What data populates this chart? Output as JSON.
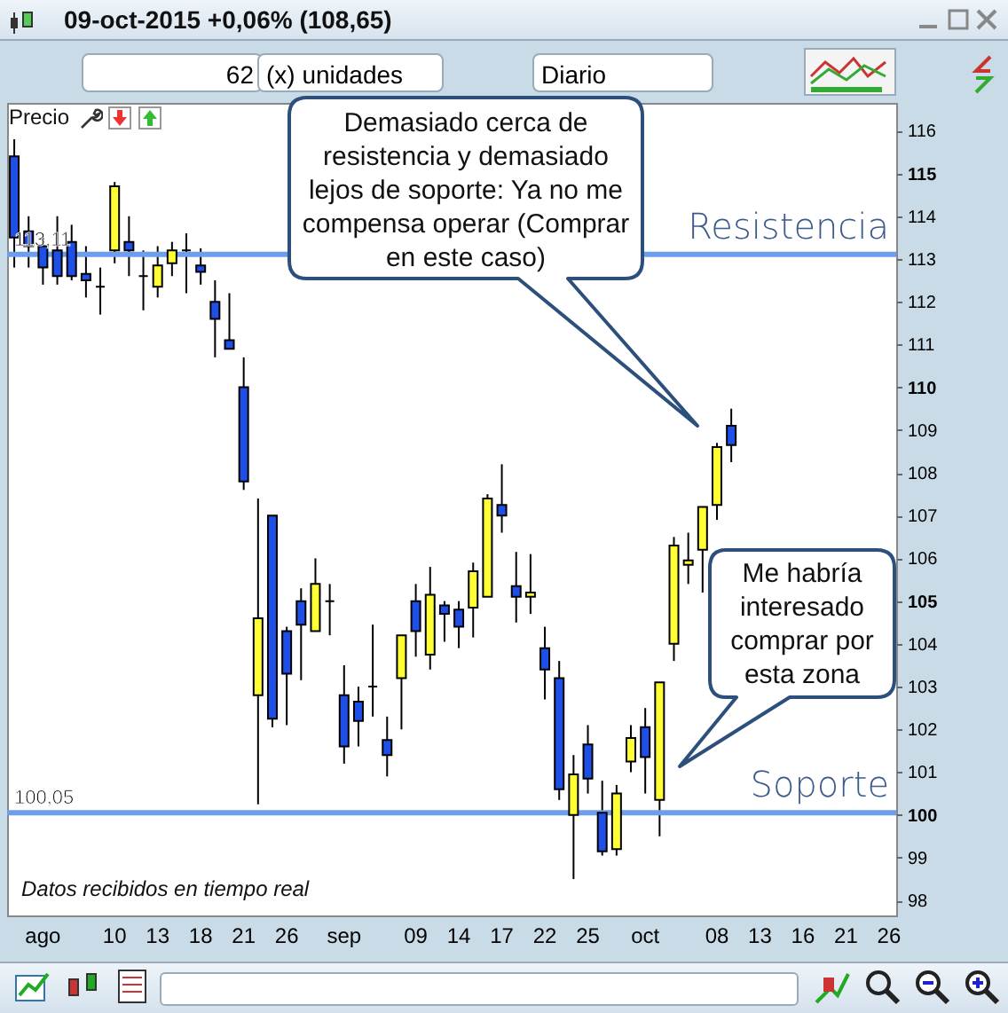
{
  "chart_data": {
    "type": "candlestick",
    "title": "09-oct-2015 +0,06% (108,65)",
    "categories": [
      null,
      null,
      "ago",
      null,
      null,
      null,
      null,
      "10",
      null,
      null,
      "13",
      null,
      null,
      "18",
      null,
      null,
      "21",
      null,
      null,
      "26",
      null,
      null,
      null,
      "sep",
      null,
      null,
      null,
      null,
      "09",
      null,
      null,
      "14",
      null,
      null,
      "17",
      null,
      null,
      "22",
      null,
      null,
      "25",
      null,
      null,
      null,
      "oct",
      null,
      null,
      null,
      null,
      "08",
      null,
      null,
      "13",
      null,
      null,
      "16",
      null,
      null,
      "21",
      null,
      null,
      "26"
    ],
    "ohlc": [
      [
        115.4,
        115.8,
        112.8,
        113.5
      ],
      [
        113.65,
        114.0,
        112.8,
        113.3
      ],
      [
        113.3,
        113.5,
        112.4,
        112.8
      ],
      [
        113.2,
        114.0,
        112.4,
        112.6
      ],
      [
        113.4,
        113.8,
        112.5,
        112.6
      ],
      [
        112.65,
        113.3,
        112.1,
        112.5
      ],
      [
        112.35,
        112.8,
        111.7,
        112.35
      ],
      [
        113.2,
        114.8,
        112.9,
        114.7
      ],
      [
        113.4,
        114.0,
        112.6,
        113.2
      ],
      [
        112.6,
        113.2,
        111.8,
        112.6
      ],
      [
        112.35,
        113.3,
        112.1,
        112.85
      ],
      [
        112.9,
        113.4,
        112.6,
        113.2
      ],
      [
        113.2,
        113.6,
        112.2,
        113.2
      ],
      [
        112.85,
        113.25,
        112.4,
        112.7
      ],
      [
        112.0,
        112.5,
        110.7,
        111.6
      ],
      [
        111.1,
        112.2,
        110.9,
        110.9
      ],
      [
        110.0,
        110.7,
        107.6,
        107.8
      ],
      [
        102.8,
        107.4,
        100.25,
        104.6
      ],
      [
        107.0,
        107.0,
        102.05,
        102.25
      ],
      [
        104.3,
        104.4,
        102.1,
        103.3
      ],
      [
        105.0,
        105.3,
        103.15,
        104.45
      ],
      [
        104.3,
        106.0,
        104.3,
        105.4
      ],
      [
        105.0,
        105.4,
        104.2,
        105.0
      ],
      [
        102.8,
        103.5,
        101.2,
        101.6
      ],
      [
        102.65,
        103.0,
        101.6,
        102.2
      ],
      [
        103.0,
        104.45,
        102.3,
        103.0
      ],
      [
        101.75,
        102.3,
        100.9,
        101.4
      ],
      [
        103.2,
        104.2,
        102.0,
        104.2
      ],
      [
        105.0,
        105.4,
        103.7,
        104.3
      ],
      [
        103.75,
        105.8,
        103.4,
        105.15
      ],
      [
        104.9,
        105.0,
        104.05,
        104.7
      ],
      [
        104.8,
        105.0,
        103.9,
        104.4
      ],
      [
        104.85,
        105.9,
        104.15,
        105.7
      ],
      [
        105.1,
        107.5,
        105.1,
        107.4
      ],
      [
        107.25,
        108.2,
        106.6,
        107.0
      ],
      [
        105.35,
        106.15,
        104.5,
        105.1
      ],
      [
        105.1,
        106.1,
        104.7,
        105.2
      ],
      [
        103.9,
        104.4,
        102.7,
        103.4
      ],
      [
        103.2,
        103.6,
        100.35,
        100.6
      ],
      [
        100.0,
        101.4,
        98.5,
        100.95
      ],
      [
        101.65,
        102.1,
        100.5,
        100.85
      ],
      [
        100.05,
        100.8,
        99.05,
        99.15
      ],
      [
        99.2,
        100.7,
        99.05,
        100.5
      ],
      [
        101.25,
        102.1,
        101.0,
        101.8
      ],
      [
        102.05,
        102.5,
        100.5,
        101.35
      ],
      [
        100.35,
        103.1,
        99.5,
        103.1
      ],
      [
        104.0,
        106.5,
        103.6,
        106.3
      ],
      [
        105.85,
        106.6,
        105.4,
        105.95
      ],
      [
        106.2,
        107.2,
        105.2,
        107.2
      ],
      [
        107.25,
        108.7,
        106.9,
        108.6
      ],
      [
        109.1,
        109.5,
        108.25,
        108.65
      ],
      null,
      null,
      null,
      null,
      null,
      null,
      null,
      null,
      null,
      null,
      null
    ],
    "colors": [
      "#1e4fe6",
      "#1e4fe6",
      "#1e4fe6",
      "#1e4fe6",
      "#1e4fe6",
      "#1e4fe6",
      "#000000",
      "#ffff33",
      "#1e4fe6",
      "#000000",
      "#ffff33",
      "#ffff33",
      "#000000",
      "#1e4fe6",
      "#1e4fe6",
      "#1e4fe6",
      "#1e4fe6",
      "#ffff33",
      "#1e4fe6",
      "#1e4fe6",
      "#1e4fe6",
      "#ffff33",
      "#000000",
      "#1e4fe6",
      "#1e4fe6",
      "#000000",
      "#1e4fe6",
      "#ffff33",
      "#1e4fe6",
      "#ffff33",
      "#1e4fe6",
      "#1e4fe6",
      "#ffff33",
      "#ffff33",
      "#1e4fe6",
      "#1e4fe6",
      "#ffff33",
      "#1e4fe6",
      "#1e4fe6",
      "#ffff33",
      "#1e4fe6",
      "#1e4fe6",
      "#ffff33",
      "#ffff33",
      "#1e4fe6",
      "#ffff33",
      "#ffff33",
      "#ffff33",
      "#ffff33",
      "#ffff33",
      "#1e4fe6",
      null,
      null,
      null,
      null,
      null,
      null,
      null,
      null,
      null,
      null,
      null
    ],
    "ylim": [
      97.65,
      116.65
    ],
    "yticks": [
      98,
      99,
      100,
      101,
      102,
      103,
      104,
      105,
      106,
      107,
      108,
      109,
      110,
      111,
      112,
      113,
      114,
      115,
      116
    ],
    "ref_lines": [
      {
        "axis": "y",
        "value": 113.11,
        "label": "Resistencia",
        "color": "#6d9eeb"
      },
      {
        "axis": "y",
        "value": 100.05,
        "label": "Soporte",
        "color": "#6d9eeb"
      }
    ],
    "annotations": [
      {
        "text": "113,11",
        "y": 113.11
      },
      {
        "text": "100,05",
        "y": 100.05
      },
      "Demasiado cerca de resistencia y demasiado lejos de soporte: Ya no me compensa operar (Comprar en este caso)",
      "Me habría interesado comprar por esta zona",
      "Datos recibidos en tiempo real",
      "Precio",
      "62",
      "(x) unidades",
      "Diario"
    ]
  }
}
